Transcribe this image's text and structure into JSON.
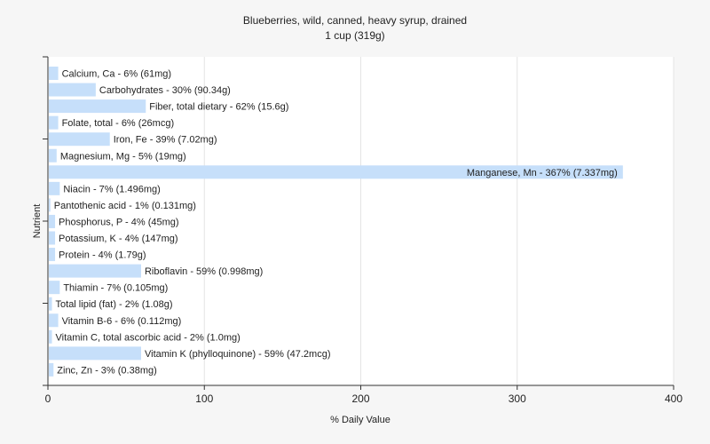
{
  "chart_data": {
    "type": "bar",
    "orientation": "horizontal",
    "title": "Blueberries, wild, canned, heavy syrup, drained",
    "subtitle": "1 cup (319g)",
    "xlabel": "% Daily Value",
    "ylabel": "Nutrient",
    "xlim": [
      0,
      400
    ],
    "xticks": [
      "0",
      "100",
      "200",
      "300",
      "400"
    ],
    "grid": "vertical",
    "bar_color": "#c6dffa",
    "categories": [
      "Calcium, Ca",
      "Carbohydrates",
      "Fiber, total dietary",
      "Folate, total",
      "Iron, Fe",
      "Magnesium, Mg",
      "Manganese, Mn",
      "Niacin",
      "Pantothenic acid",
      "Phosphorus, P",
      "Potassium, K",
      "Protein",
      "Riboflavin",
      "Thiamin",
      "Total lipid (fat)",
      "Vitamin B-6",
      "Vitamin C, total ascorbic acid",
      "Vitamin K (phylloquinone)",
      "Zinc, Zn"
    ],
    "values": [
      6,
      30,
      62,
      6,
      39,
      5,
      367,
      7,
      1,
      4,
      4,
      4,
      59,
      7,
      2,
      6,
      2,
      59,
      3
    ],
    "labels": [
      "Calcium, Ca - 6% (61mg)",
      "Carbohydrates - 30% (90.34g)",
      "Fiber, total dietary - 62% (15.6g)",
      "Folate, total - 6% (26mcg)",
      "Iron, Fe - 39% (7.02mg)",
      "Magnesium, Mg - 5% (19mg)",
      "Manganese, Mn - 367% (7.337mg)",
      "Niacin - 7% (1.496mg)",
      "Pantothenic acid - 1% (0.131mg)",
      "Phosphorus, P - 4% (45mg)",
      "Potassium, K - 4% (147mg)",
      "Protein - 4% (1.79g)",
      "Riboflavin - 59% (0.998mg)",
      "Thiamin - 7% (0.105mg)",
      "Total lipid (fat) - 2% (1.08g)",
      "Vitamin B-6 - 6% (0.112mg)",
      "Vitamin C, total ascorbic acid - 2% (1.0mg)",
      "Vitamin K (phylloquinone) - 59% (47.2mcg)",
      "Zinc, Zn - 3% (0.38mg)"
    ]
  }
}
